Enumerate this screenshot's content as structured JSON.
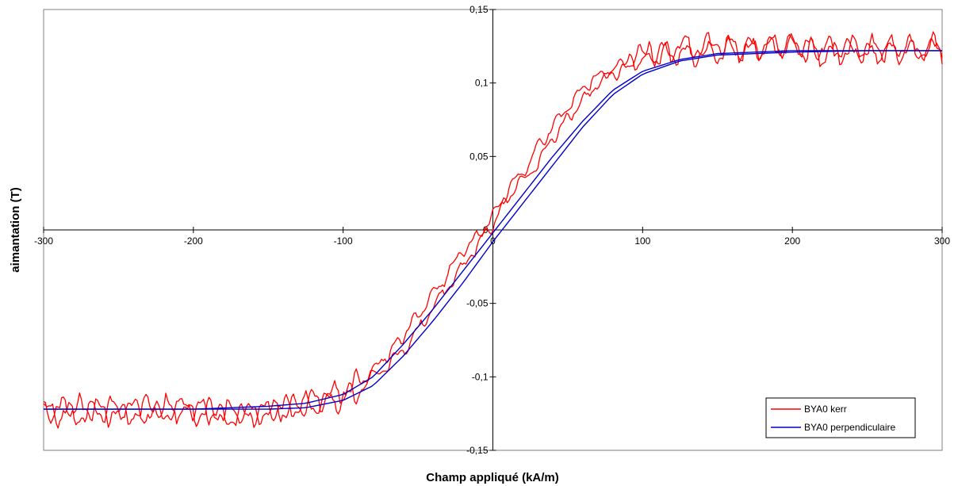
{
  "chart_data": {
    "type": "line",
    "xlabel": "Champ appliqué (kA/m)",
    "ylabel": "aimantation (T)",
    "xlim": [
      -300,
      300
    ],
    "ylim": [
      -0.15,
      0.15
    ],
    "x_ticks": [
      -300,
      -200,
      -100,
      0,
      100,
      200,
      300
    ],
    "x_tick_labels": [
      "-300",
      "-200",
      "-100",
      "0",
      "100",
      "200",
      "300"
    ],
    "y_ticks": [
      -0.15,
      -0.1,
      -0.05,
      0,
      0.05,
      0.1,
      0.15
    ],
    "y_tick_labels": [
      "-0,15",
      "-0,1",
      "-0,05",
      "0",
      "0,05",
      "0,1",
      "0,15"
    ],
    "grid": false,
    "legend_position": "bottom-right",
    "colors": {
      "series1": "#ff0000",
      "series2": "#0000cc"
    },
    "series": [
      {
        "name": "BYA0 kerr",
        "note_shape": "noisy hysteresis loop (two branches)",
        "x": [
          -300,
          -275,
          -250,
          -225,
          -200,
          -175,
          -150,
          -125,
          -100,
          -90,
          -80,
          -70,
          -60,
          -50,
          -40,
          -30,
          -20,
          -10,
          0,
          10,
          20,
          30,
          40,
          50,
          60,
          70,
          80,
          90,
          100,
          125,
          150,
          175,
          200,
          225,
          250,
          275,
          300
        ],
        "y_branch_up": [
          -0.124,
          -0.126,
          -0.12,
          -0.125,
          -0.121,
          -0.128,
          -0.122,
          -0.12,
          -0.114,
          -0.11,
          -0.1,
          -0.092,
          -0.082,
          -0.068,
          -0.054,
          -0.038,
          -0.026,
          -0.01,
          0.004,
          0.022,
          0.034,
          0.046,
          0.062,
          0.076,
          0.088,
          0.1,
          0.106,
          0.112,
          0.118,
          0.12,
          0.119,
          0.125,
          0.124,
          0.12,
          0.124,
          0.121,
          0.126
        ],
        "y_branch_down": [
          -0.122,
          -0.12,
          -0.127,
          -0.119,
          -0.125,
          -0.122,
          -0.126,
          -0.118,
          -0.11,
          -0.104,
          -0.096,
          -0.084,
          -0.072,
          -0.058,
          -0.044,
          -0.03,
          -0.014,
          -0.004,
          0.01,
          0.026,
          0.04,
          0.056,
          0.07,
          0.084,
          0.096,
          0.104,
          0.11,
          0.114,
          0.12,
          0.123,
          0.128,
          0.122,
          0.126,
          0.123,
          0.121,
          0.125,
          0.122
        ]
      },
      {
        "name": "BYA0 perpendiculaire",
        "note_shape": "smooth hysteresis loop (two branches)",
        "x": [
          -300,
          -250,
          -200,
          -150,
          -125,
          -100,
          -80,
          -60,
          -40,
          -20,
          0,
          20,
          40,
          60,
          80,
          100,
          125,
          150,
          200,
          250,
          300
        ],
        "y_branch_up": [
          -0.122,
          -0.122,
          -0.122,
          -0.12,
          -0.118,
          -0.112,
          -0.1,
          -0.078,
          -0.054,
          -0.028,
          -0.002,
          0.024,
          0.05,
          0.074,
          0.095,
          0.108,
          0.116,
          0.12,
          0.122,
          0.122,
          0.122
        ],
        "y_branch_down": [
          -0.122,
          -0.122,
          -0.122,
          -0.122,
          -0.121,
          -0.116,
          -0.106,
          -0.086,
          -0.062,
          -0.036,
          -0.008,
          0.018,
          0.044,
          0.07,
          0.092,
          0.106,
          0.115,
          0.119,
          0.121,
          0.122,
          0.122
        ]
      }
    ]
  }
}
